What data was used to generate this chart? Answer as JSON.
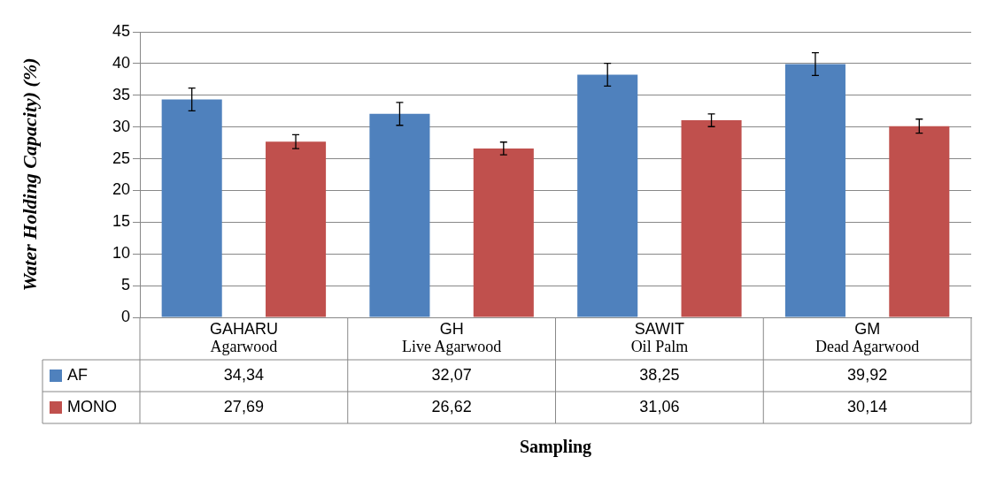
{
  "chart_data": {
    "type": "bar",
    "ylabel": "Water Holding Capacity) (%)",
    "xlabel": "Sampling",
    "categories": [
      "GAHARU\nAgarwood",
      "GH\nLive Agarwood",
      "SAWIT\nOil Palm",
      "GM\nDead Agarwood"
    ],
    "series": [
      {
        "name": "AF",
        "color": "#4f81bd",
        "values": [
          34.34,
          32.07,
          38.25,
          39.92
        ],
        "errors": [
          1.8,
          1.8,
          1.8,
          1.8
        ],
        "value_labels": [
          "34,34",
          "32,07",
          "38,25",
          "39,92"
        ]
      },
      {
        "name": "MONO",
        "color": "#c0504d",
        "values": [
          27.69,
          26.62,
          31.06,
          30.14
        ],
        "errors": [
          1.1,
          1.0,
          1.0,
          1.1
        ],
        "value_labels": [
          "27,69",
          "26,62",
          "31,06",
          "30,14"
        ]
      }
    ],
    "ylim": [
      0,
      45
    ],
    "yticks": [
      0,
      5,
      10,
      15,
      20,
      25,
      30,
      35,
      40,
      45
    ],
    "grid": "y",
    "legend": "bottom left"
  }
}
